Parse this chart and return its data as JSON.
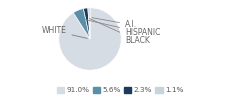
{
  "labels": [
    "WHITE",
    "HISPANIC",
    "BLACK",
    "A.I."
  ],
  "values": [
    91.0,
    5.6,
    2.3,
    1.1
  ],
  "colors": [
    "#d6dce4",
    "#5b8fa8",
    "#1f3a5f",
    "#c8d4dc"
  ],
  "legend_labels": [
    "91.0%",
    "5.6%",
    "2.3%",
    "1.1%"
  ],
  "label_fontsize": 5.5,
  "legend_fontsize": 5.2
}
